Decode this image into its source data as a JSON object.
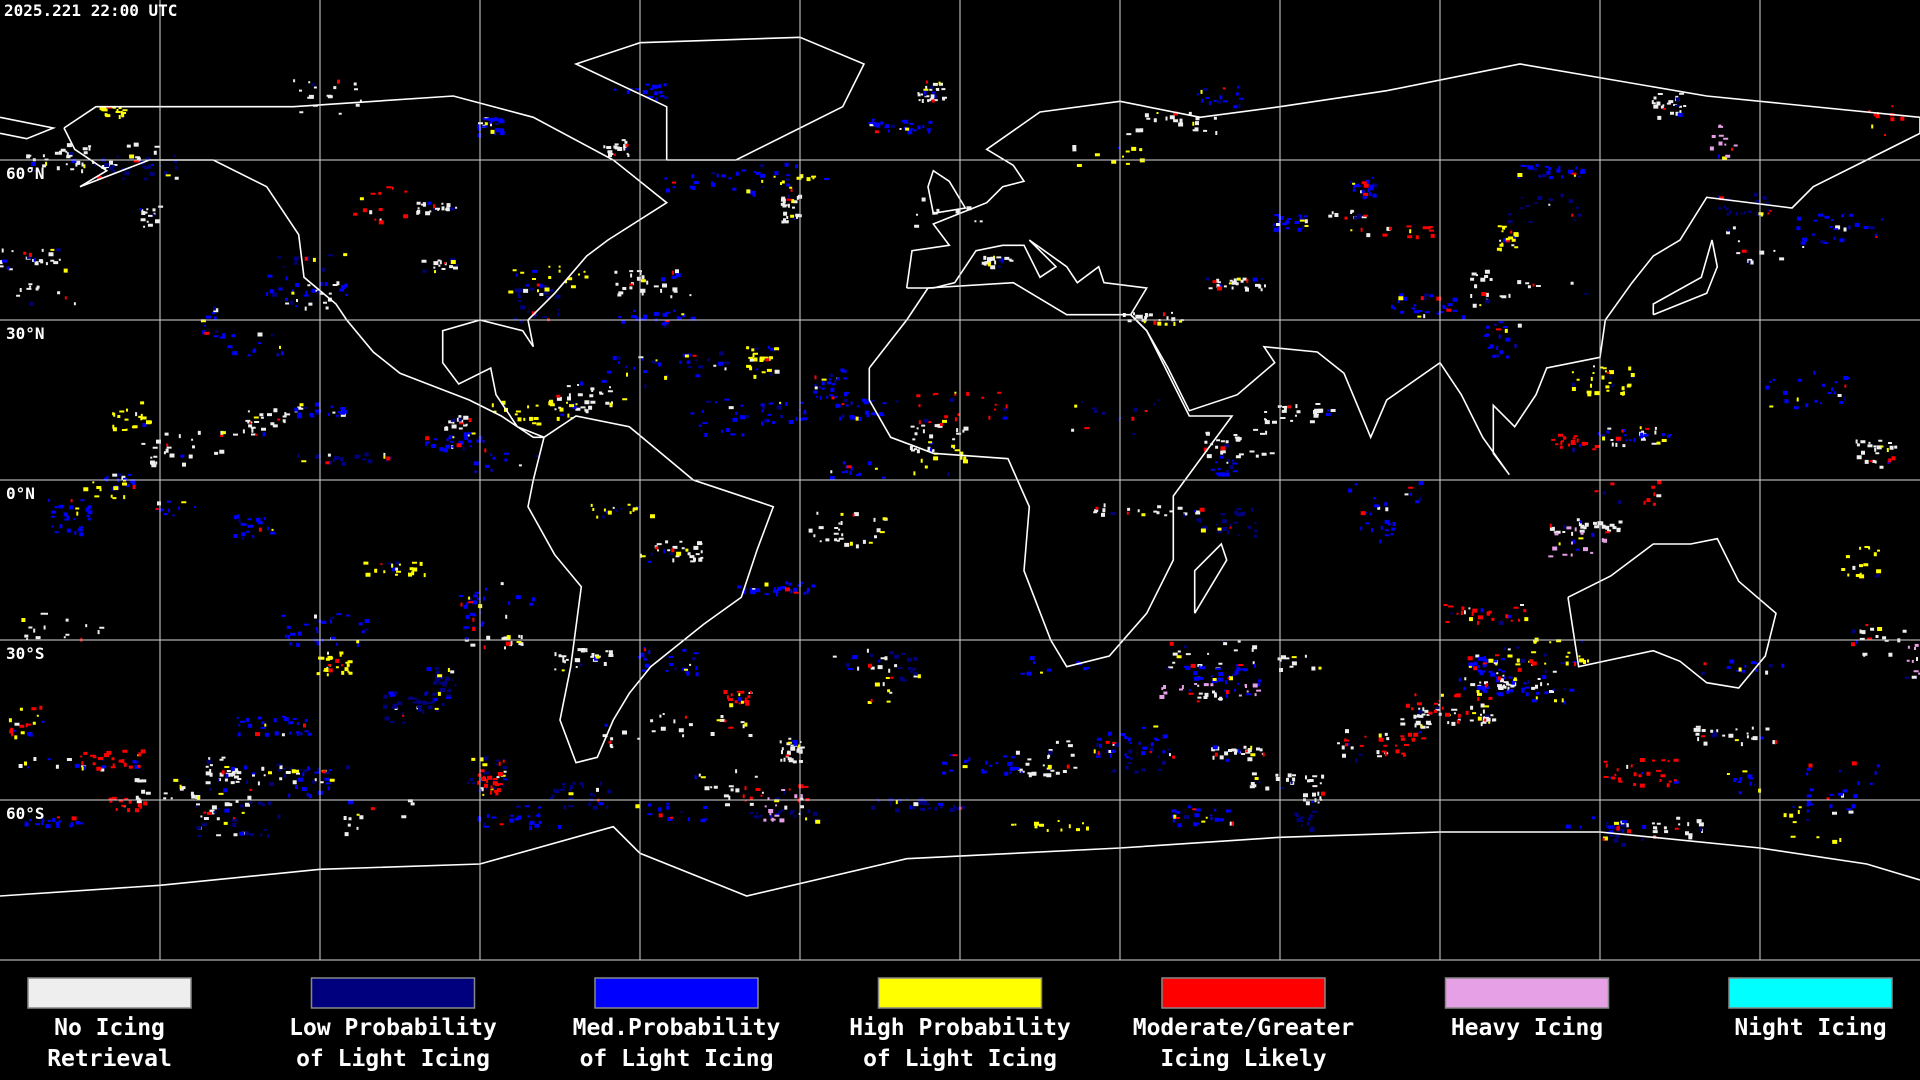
{
  "header": {
    "timestamp": "2025.221 22:00 UTC"
  },
  "latitude_labels": [
    "60°N",
    "30°N",
    "0°N",
    "30°S",
    "60°S"
  ],
  "legend": {
    "items": [
      {
        "lines": [
          "No Icing",
          "Retrieval"
        ],
        "color": "#eeeeee"
      },
      {
        "lines": [
          "Low Probability",
          "of Light Icing"
        ],
        "color": "#00007f"
      },
      {
        "lines": [
          "Med.Probability",
          "of Light Icing"
        ],
        "color": "#0000ff"
      },
      {
        "lines": [
          "High Probability",
          "of Light Icing"
        ],
        "color": "#ffff00"
      },
      {
        "lines": [
          "Moderate/Greater",
          "Icing Likely"
        ],
        "color": "#ff0000"
      },
      {
        "lines": [
          "Heavy Icing"
        ],
        "color": "#e6a0e6"
      },
      {
        "lines": [
          "Night Icing"
        ],
        "color": "#00ffff"
      }
    ]
  }
}
